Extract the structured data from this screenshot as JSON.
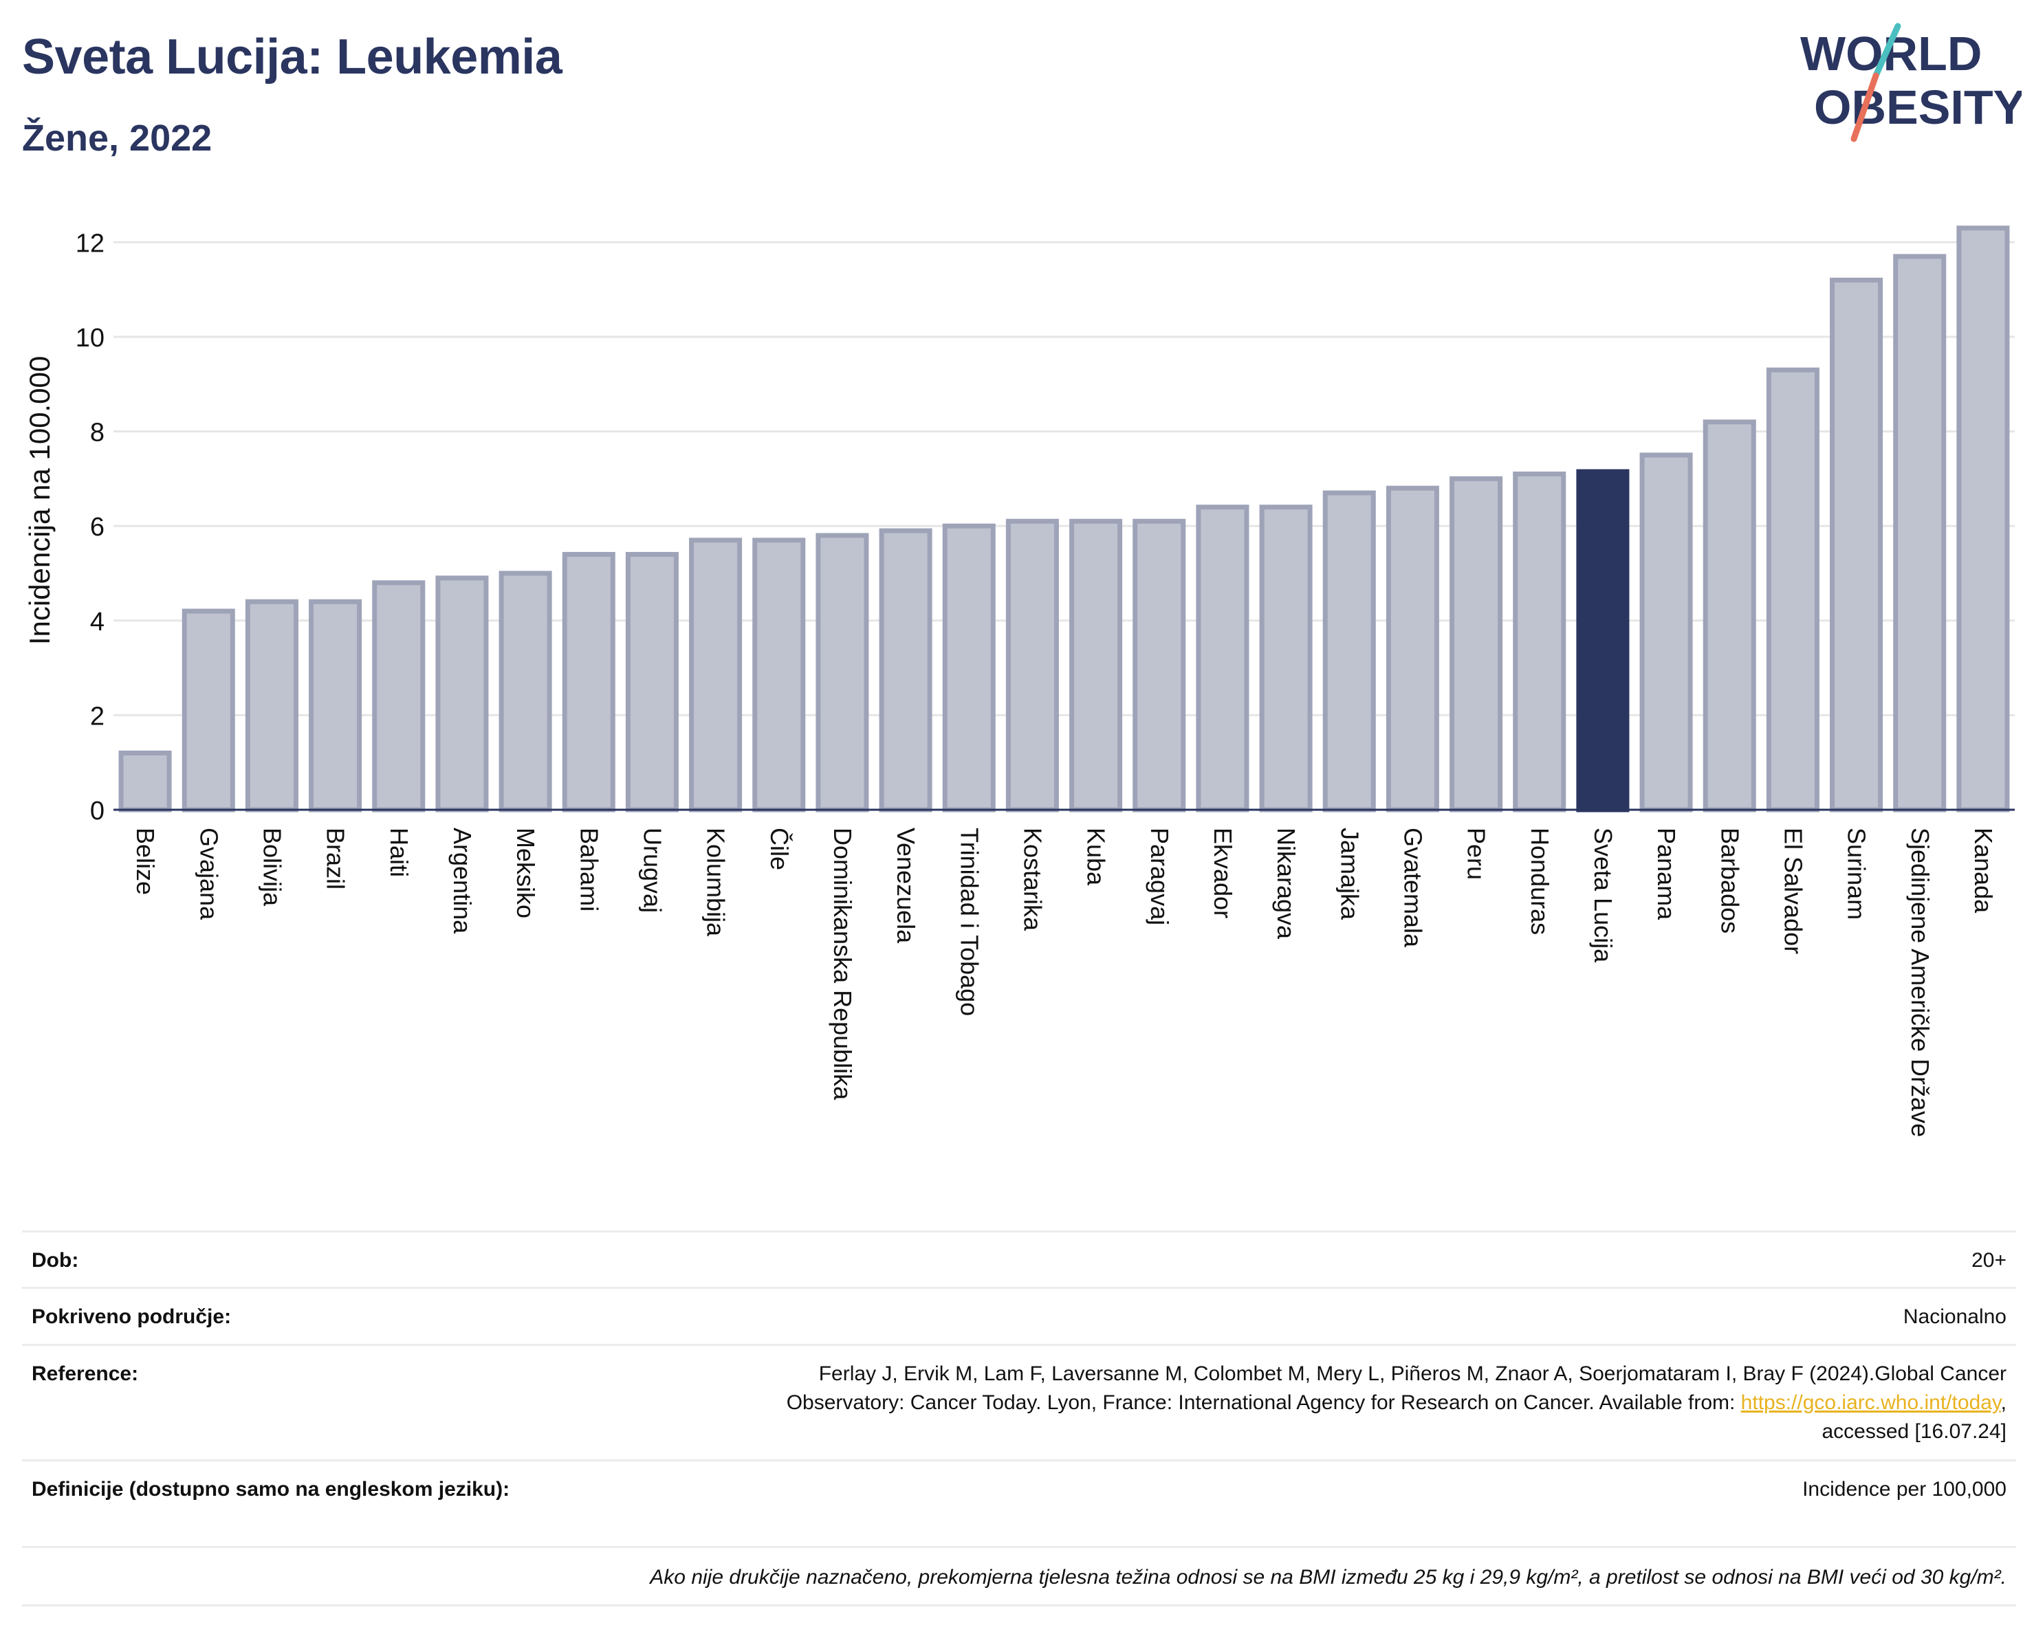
{
  "header": {
    "title": "Sveta Lucija: Leukemia",
    "subtitle": "Žene, 2022"
  },
  "logo": {
    "line1": "WORLD",
    "line2": "OBESITY",
    "colors": {
      "text": "#2a3560",
      "slash_top": "#4bbfbf",
      "slash_bottom": "#e8705a"
    }
  },
  "colors": {
    "bar": "#bfc2cf",
    "bar_border": "#9ea3b8",
    "highlight": "#2a3560",
    "grid": "#e6e6e6",
    "axis": "#2a3560"
  },
  "chart_data": {
    "type": "bar",
    "ylabel": "Incidencija na 100.000",
    "ylim": [
      0,
      12.5
    ],
    "yticks": [
      0,
      2,
      4,
      6,
      8,
      10,
      12
    ],
    "highlight": "Sveta Lucija",
    "categories": [
      "Belize",
      "Gvajana",
      "Bolivija",
      "Brazil",
      "Haiti",
      "Argentina",
      "Meksiko",
      "Bahami",
      "Urugvaj",
      "Kolumbija",
      "Čile",
      "Dominikanska Republika",
      "Venezuela",
      "Trinidad i Tobago",
      "Kostarika",
      "Kuba",
      "Paragvaj",
      "Ekvador",
      "Nikaragva",
      "Jamajka",
      "Gvatemala",
      "Peru",
      "Honduras",
      "Sveta Lucija",
      "Panama",
      "Barbados",
      "El Salvador",
      "Surinam",
      "Sjedinjene Američke Države",
      "Kanada"
    ],
    "values": [
      1.2,
      4.2,
      4.4,
      4.4,
      4.8,
      4.9,
      5.0,
      5.4,
      5.4,
      5.7,
      5.7,
      5.8,
      5.9,
      6.0,
      6.1,
      6.1,
      6.1,
      6.4,
      6.4,
      6.7,
      6.8,
      7.0,
      7.1,
      7.15,
      7.5,
      8.2,
      9.3,
      11.2,
      11.7,
      12.3
    ]
  },
  "meta": {
    "age_label": "Dob:",
    "age_value": "20+",
    "coverage_label": "Pokriveno područje:",
    "coverage_value": "Nacionalno",
    "reference_label": "Reference:",
    "reference_line1": "Ferlay J, Ervik M, Lam F, Laversanne M, Colombet M, Mery L, Piñeros M, Znaor A, Soerjomataram I, Bray F (2024).Global Cancer",
    "reference_line2": "Observatory: Cancer Today. Lyon, France: International Agency for Research on Cancer. Available from:",
    "reference_link": "https://gco.iarc.who.int/today",
    "reference_line3": "accessed [16.07.24]",
    "definitions_label": "Definicije (dostupno samo na engleskom jeziku):",
    "definitions_value": "Incidence per 100,000",
    "note": "Ako nije drukčije naznačeno, prekomjerna tjelesna težina odnosi se na BMI između 25 kg i 29,9 kg/m², a pretilost se odnosi na BMI veći od 30 kg/m²."
  }
}
